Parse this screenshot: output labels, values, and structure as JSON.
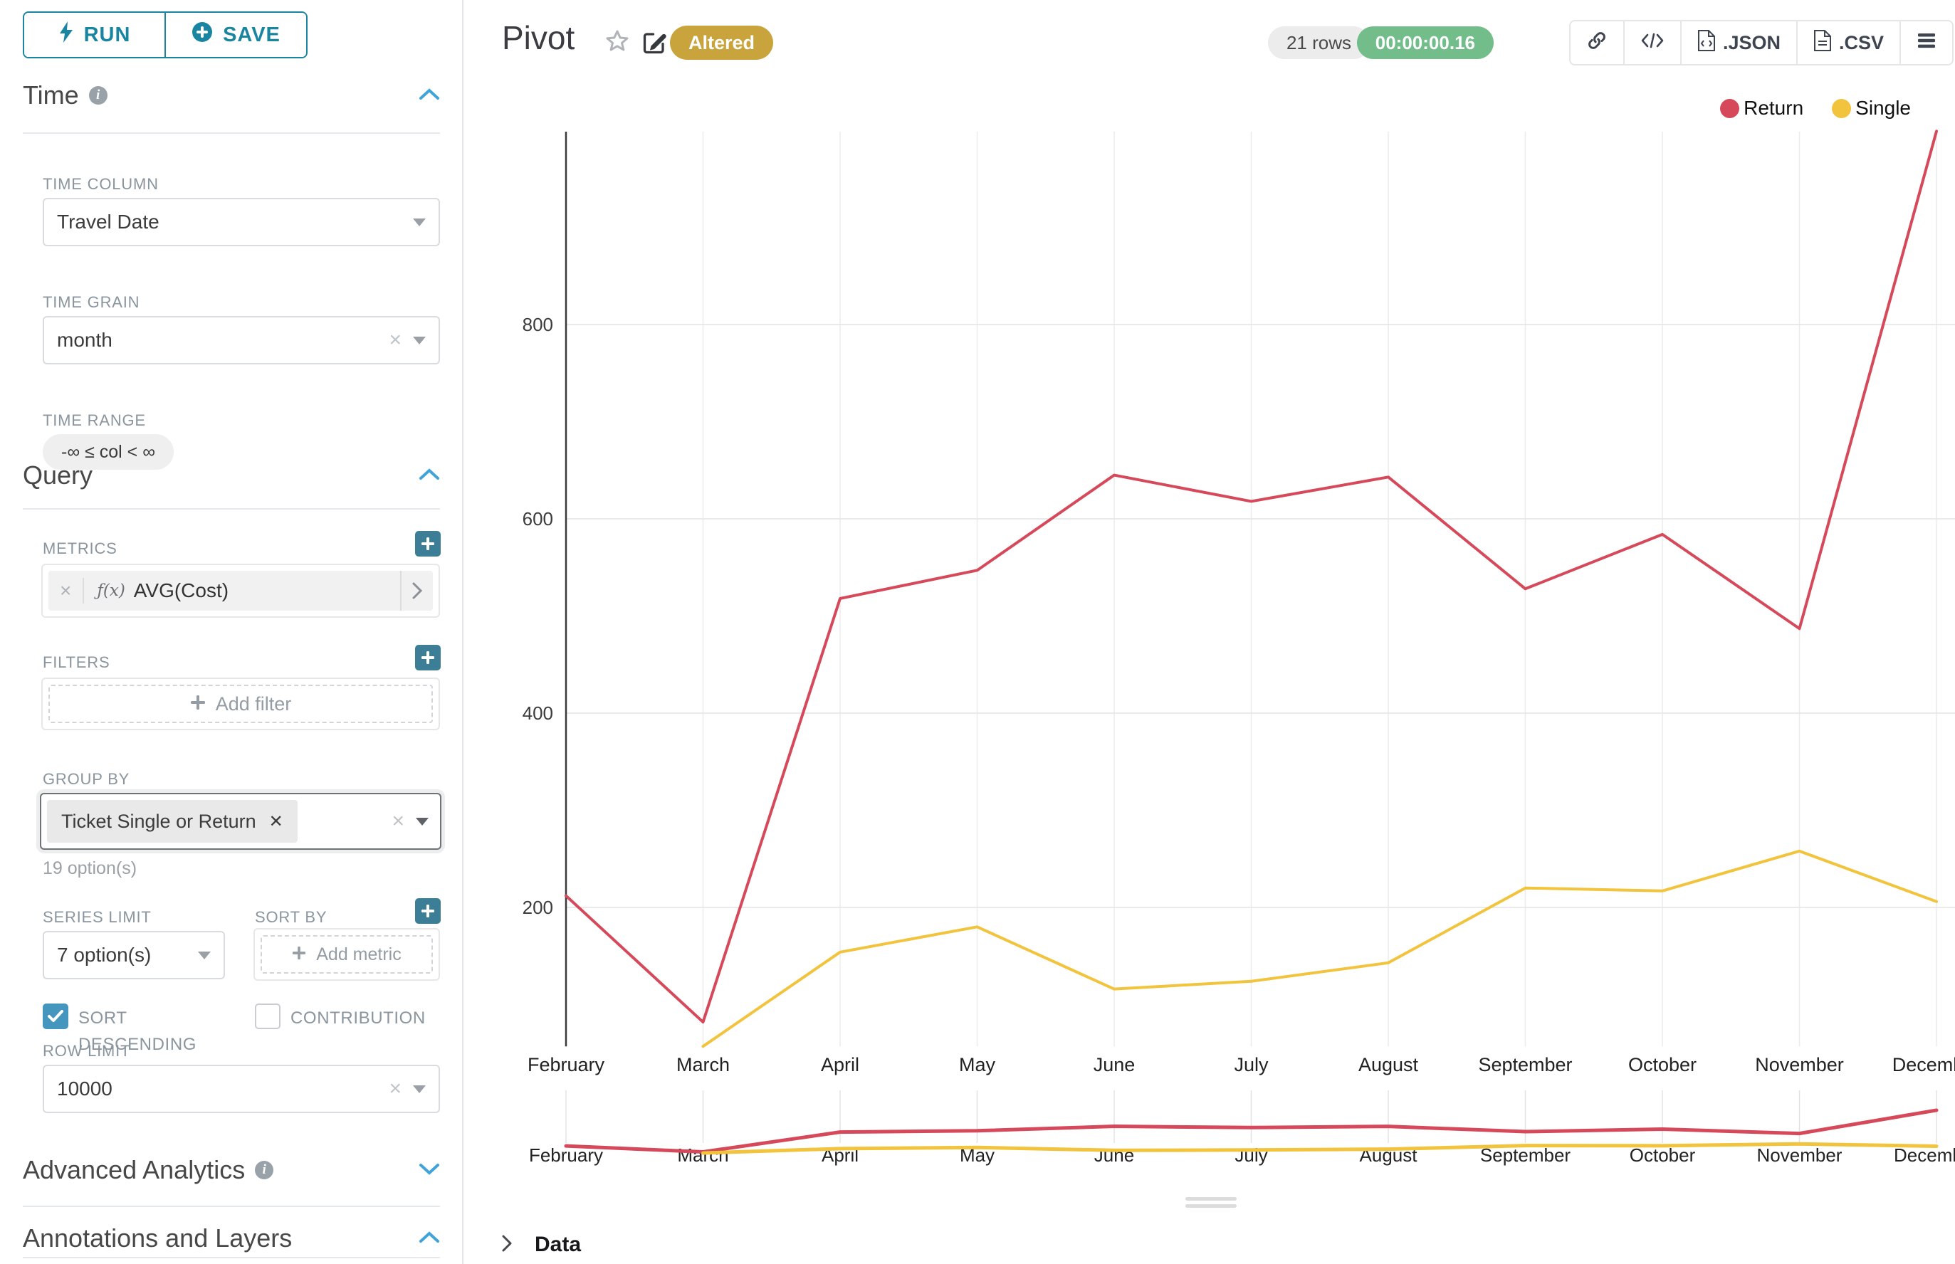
{
  "toolbar": {
    "run_label": "RUN",
    "save_label": "SAVE"
  },
  "sidebar": {
    "time": {
      "title": "Time",
      "time_column_label": "TIME COLUMN",
      "time_column_value": "Travel Date",
      "time_grain_label": "TIME GRAIN",
      "time_grain_value": "month",
      "time_range_label": "TIME RANGE",
      "time_range_value": "-∞ ≤ col < ∞"
    },
    "query": {
      "title": "Query",
      "metrics_label": "METRICS",
      "metric_fx": "ƒ(x)",
      "metric_value": "AVG(Cost)",
      "filters_label": "FILTERS",
      "add_filter_label": "Add filter",
      "group_by_label": "GROUP BY",
      "group_by_tag": "Ticket Single or Return",
      "options_hint": "19 option(s)",
      "series_limit_label": "SERIES LIMIT",
      "series_limit_value": "7 option(s)",
      "sort_by_label": "SORT BY",
      "add_metric_label": "Add metric",
      "sort_descending_label": "SORT DESCENDING",
      "sort_descending_checked": true,
      "contribution_label": "CONTRIBUTION",
      "contribution_checked": false,
      "row_limit_label": "ROW LIMIT",
      "row_limit_value": "10000"
    },
    "advanced_analytics_title": "Advanced Analytics",
    "annotations_title": "Annotations and Layers"
  },
  "header": {
    "title": "Pivot",
    "altered_badge": "Altered",
    "rows_badge": "21 rows",
    "duration_badge": "00:00:00.16",
    "json_label": ".JSON",
    "csv_label": ".CSV"
  },
  "data_panel": {
    "label": "Data"
  },
  "colors": {
    "return_series": "#d5495a",
    "single_series": "#f2c33d",
    "accent_teal": "#1a85a0",
    "badge_gold": "#c9a33b",
    "badge_green": "#72bd89",
    "rows_pill_bg": "#ececec",
    "rows_pill_text": "#4a4a4a"
  },
  "chart_data": {
    "type": "line",
    "title": "Pivot",
    "categories": [
      "February",
      "March",
      "April",
      "May",
      "June",
      "July",
      "August",
      "September",
      "October",
      "November",
      "December"
    ],
    "series": [
      {
        "name": "Return",
        "color_key": "return_series",
        "values": [
          212,
          82,
          518,
          547,
          645,
          618,
          643,
          528,
          584,
          487,
          999
        ]
      },
      {
        "name": "Single",
        "color_key": "single_series",
        "values": [
          null,
          57,
          154,
          180,
          116,
          124,
          143,
          220,
          217,
          258,
          206
        ]
      }
    ],
    "xlabel": "",
    "ylabel": "",
    "yticks": [
      200,
      400,
      600,
      800
    ],
    "ylim": [
      57,
      1000
    ],
    "grid": true,
    "legend_position": "top-right",
    "has_range_selector": true
  }
}
